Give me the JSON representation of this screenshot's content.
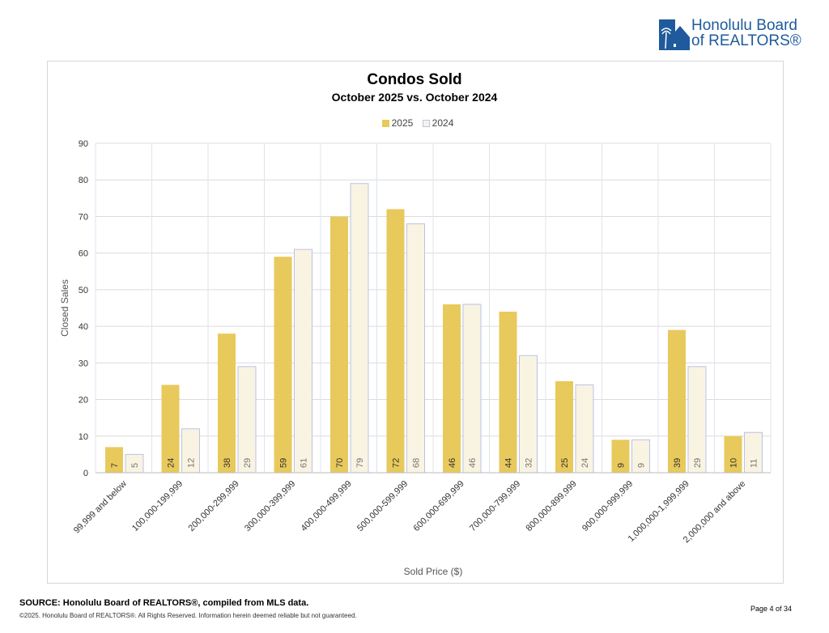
{
  "header": {
    "logo_text_line1": "Honolulu Board",
    "logo_text_line2": "of REALTORS®"
  },
  "footer": {
    "source": "SOURCE: Honolulu Board of REALTORS®, compiled from MLS data.",
    "copyright": "©2025. Honolulu Board of REALTORS®. All Rights Reserved. Information herein deemed reliable but not guaranteed.",
    "page": "Page 4 of 34"
  },
  "chart_data": {
    "type": "bar",
    "title": "Condos Sold",
    "subtitle": "October 2025 vs. October 2024",
    "xlabel": "Sold Price ($)",
    "ylabel": "Closed Sales",
    "ylim": [
      0,
      90
    ],
    "yticks": [
      0,
      10,
      20,
      30,
      40,
      50,
      60,
      70,
      80,
      90
    ],
    "legend_position": "top",
    "categories": [
      "99,999 and below",
      "100,000-199,999",
      "200,000-299,999",
      "300,000-399,999",
      "400,000-499,999",
      "500,000-599,999",
      "600,000-699,999",
      "700,000-799,999",
      "800,000-899,999",
      "900,000-999,999",
      "1,000,000-1,999,999",
      "2,000,000 and above"
    ],
    "series": [
      {
        "name": "2025",
        "color": "#e8c95c",
        "values": [
          7,
          24,
          38,
          59,
          70,
          72,
          46,
          44,
          25,
          9,
          39,
          10
        ]
      },
      {
        "name": "2024",
        "color": "#f9f3e2",
        "border": "#b9c3e8",
        "values": [
          5,
          12,
          29,
          61,
          79,
          68,
          46,
          32,
          24,
          9,
          29,
          11
        ]
      }
    ]
  }
}
